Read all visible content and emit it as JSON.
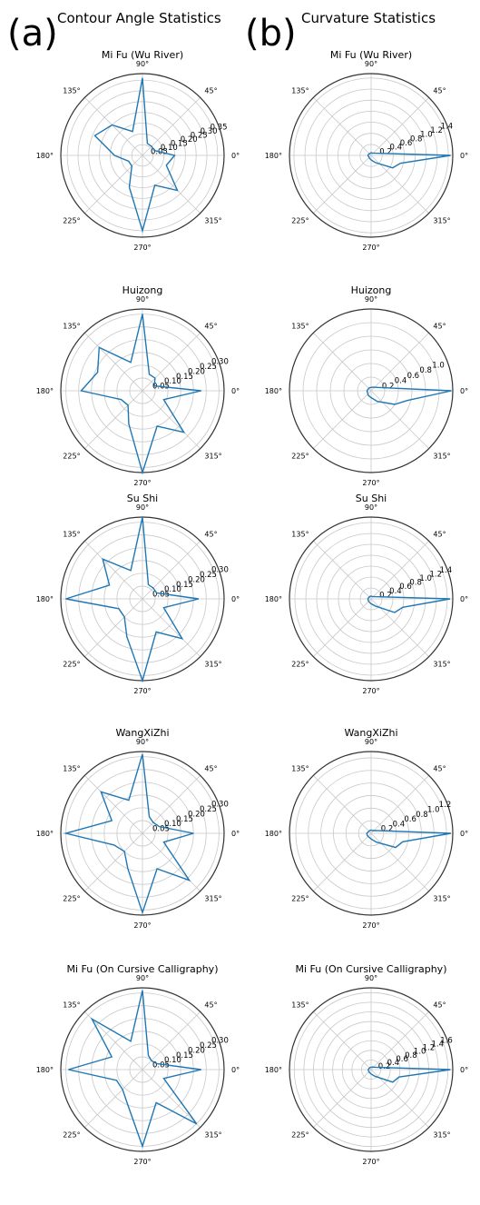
{
  "panels": {
    "a": {
      "letter": "(a)",
      "title": "Contour Angle Statistics"
    },
    "b": {
      "letter": "(b)",
      "title": "Curvature Statistics"
    }
  },
  "angle_labels": [
    "0°",
    "45°",
    "90°",
    "135°",
    "180°",
    "225°",
    "270°",
    "315°"
  ],
  "colors": {
    "series": "#1f77b4",
    "grid": "#c8c8c8",
    "frame": "#333333"
  },
  "chart_data": [
    {
      "type": "polar",
      "panel": "a",
      "title": "Mi Fu (Wu River)",
      "theta_deg": [
        0,
        22.5,
        45,
        67.5,
        90,
        112.5,
        135,
        157.5,
        180,
        202.5,
        225,
        247.5,
        270,
        292.5,
        315,
        337.5
      ],
      "r": [
        0.15,
        0.06,
        0.06,
        0.06,
        0.36,
        0.12,
        0.2,
        0.24,
        0.13,
        0.07,
        0.07,
        0.16,
        0.35,
        0.15,
        0.23,
        0.12
      ],
      "rticks": [
        0.05,
        0.1,
        0.15,
        0.2,
        0.25,
        0.3,
        0.35
      ],
      "rlim": [
        0,
        0.38
      ],
      "rlabel_angle": 22.5
    },
    {
      "type": "polar",
      "panel": "a",
      "title": "Huizong",
      "theta_deg": [
        0,
        22.5,
        45,
        67.5,
        90,
        112.5,
        135,
        157.5,
        180,
        202.5,
        225,
        247.5,
        270,
        292.5,
        315,
        337.5
      ],
      "r": [
        0.23,
        0.05,
        0.07,
        0.07,
        0.3,
        0.12,
        0.24,
        0.19,
        0.24,
        0.09,
        0.08,
        0.14,
        0.32,
        0.15,
        0.23,
        0.09
      ],
      "rticks": [
        0.05,
        0.1,
        0.15,
        0.2,
        0.25,
        0.3
      ],
      "rlim": [
        0,
        0.32
      ],
      "rlabel_angle": 22.5
    },
    {
      "type": "polar",
      "panel": "a",
      "title": "Su Shi",
      "theta_deg": [
        0,
        22.5,
        45,
        67.5,
        90,
        112.5,
        135,
        157.5,
        180,
        202.5,
        225,
        247.5,
        270,
        292.5,
        315,
        337.5
      ],
      "r": [
        0.22,
        0.06,
        0.06,
        0.06,
        0.32,
        0.12,
        0.22,
        0.14,
        0.3,
        0.1,
        0.1,
        0.16,
        0.32,
        0.14,
        0.22,
        0.09
      ],
      "rticks": [
        0.05,
        0.1,
        0.15,
        0.2,
        0.25,
        0.3
      ],
      "rlim": [
        0,
        0.32
      ],
      "rlabel_angle": 22.5
    },
    {
      "type": "polar",
      "panel": "a",
      "title": "WangXiZhi",
      "theta_deg": [
        0,
        22.5,
        45,
        67.5,
        90,
        112.5,
        135,
        157.5,
        180,
        202.5,
        225,
        247.5,
        270,
        292.5,
        315,
        337.5
      ],
      "r": [
        0.2,
        0.07,
        0.06,
        0.07,
        0.31,
        0.14,
        0.23,
        0.13,
        0.3,
        0.12,
        0.1,
        0.15,
        0.31,
        0.15,
        0.26,
        0.09
      ],
      "rticks": [
        0.05,
        0.1,
        0.15,
        0.2,
        0.25,
        0.3
      ],
      "rlim": [
        0,
        0.32
      ],
      "rlabel_angle": 22.5
    },
    {
      "type": "polar",
      "panel": "a",
      "title": "Mi Fu (On Cursive Calligraphy)",
      "theta_deg": [
        0,
        22.5,
        45,
        67.5,
        90,
        112.5,
        135,
        157.5,
        180,
        202.5,
        225,
        247.5,
        270,
        292.5,
        315,
        337.5
      ],
      "r": [
        0.23,
        0.06,
        0.05,
        0.06,
        0.31,
        0.12,
        0.28,
        0.13,
        0.29,
        0.11,
        0.11,
        0.15,
        0.3,
        0.14,
        0.3,
        0.09
      ],
      "rticks": [
        0.05,
        0.1,
        0.15,
        0.2,
        0.25,
        0.3
      ],
      "rlim": [
        0,
        0.32
      ],
      "rlabel_angle": 22.5
    },
    {
      "type": "polar",
      "panel": "b",
      "title": "Mi Fu (Wu River)",
      "theta_deg": [
        0,
        30,
        60,
        90,
        120,
        150,
        180,
        210,
        240,
        270,
        300,
        330,
        345
      ],
      "r": [
        1.44,
        0.08,
        0.05,
        0.05,
        0.04,
        0.05,
        0.06,
        0.05,
        0.06,
        0.08,
        0.15,
        0.45,
        0.55
      ],
      "rticks": [
        0.2,
        0.4,
        0.6,
        0.8,
        1.0,
        1.2,
        1.4
      ],
      "rlim": [
        0,
        1.48
      ],
      "rlabel_angle": 22.5
    },
    {
      "type": "polar",
      "panel": "b",
      "title": "Huizong",
      "theta_deg": [
        0,
        30,
        60,
        90,
        120,
        150,
        180,
        210,
        240,
        270,
        300,
        330,
        345
      ],
      "r": [
        1.18,
        0.1,
        0.06,
        0.05,
        0.05,
        0.05,
        0.06,
        0.06,
        0.08,
        0.1,
        0.18,
        0.4,
        0.55
      ],
      "rticks": [
        0.2,
        0.4,
        0.6,
        0.8,
        1.0
      ],
      "rlim": [
        0,
        1.2
      ],
      "rlabel_angle": 22.5
    },
    {
      "type": "polar",
      "panel": "b",
      "title": "Su Shi",
      "theta_deg": [
        0,
        30,
        60,
        90,
        120,
        150,
        180,
        210,
        240,
        270,
        300,
        330,
        345
      ],
      "r": [
        1.45,
        0.08,
        0.05,
        0.05,
        0.05,
        0.05,
        0.06,
        0.06,
        0.07,
        0.09,
        0.15,
        0.5,
        0.6
      ],
      "rticks": [
        0.2,
        0.4,
        0.6,
        0.8,
        1.0,
        1.2,
        1.4
      ],
      "rlim": [
        0,
        1.5
      ],
      "rlabel_angle": 22.5
    },
    {
      "type": "polar",
      "panel": "b",
      "title": "WangXiZhi",
      "theta_deg": [
        0,
        30,
        60,
        90,
        120,
        150,
        180,
        210,
        240,
        270,
        300,
        330,
        345
      ],
      "r": [
        1.27,
        0.09,
        0.05,
        0.05,
        0.05,
        0.05,
        0.07,
        0.07,
        0.07,
        0.09,
        0.16,
        0.45,
        0.52
      ],
      "rticks": [
        0.2,
        0.4,
        0.6,
        0.8,
        1.0,
        1.2
      ],
      "rlim": [
        0,
        1.3
      ],
      "rlabel_angle": 22.5
    },
    {
      "type": "polar",
      "panel": "b",
      "title": "Mi Fu (On Cursive Calligraphy)",
      "theta_deg": [
        0,
        30,
        60,
        90,
        120,
        150,
        180,
        210,
        240,
        270,
        300,
        330,
        345
      ],
      "r": [
        1.65,
        0.1,
        0.06,
        0.05,
        0.05,
        0.05,
        0.06,
        0.06,
        0.07,
        0.09,
        0.16,
        0.52,
        0.6
      ],
      "rticks": [
        0.2,
        0.4,
        0.6,
        0.8,
        1.0,
        1.2,
        1.4,
        1.6
      ],
      "rlim": [
        0,
        1.7
      ],
      "rlabel_angle": 22.5
    }
  ]
}
